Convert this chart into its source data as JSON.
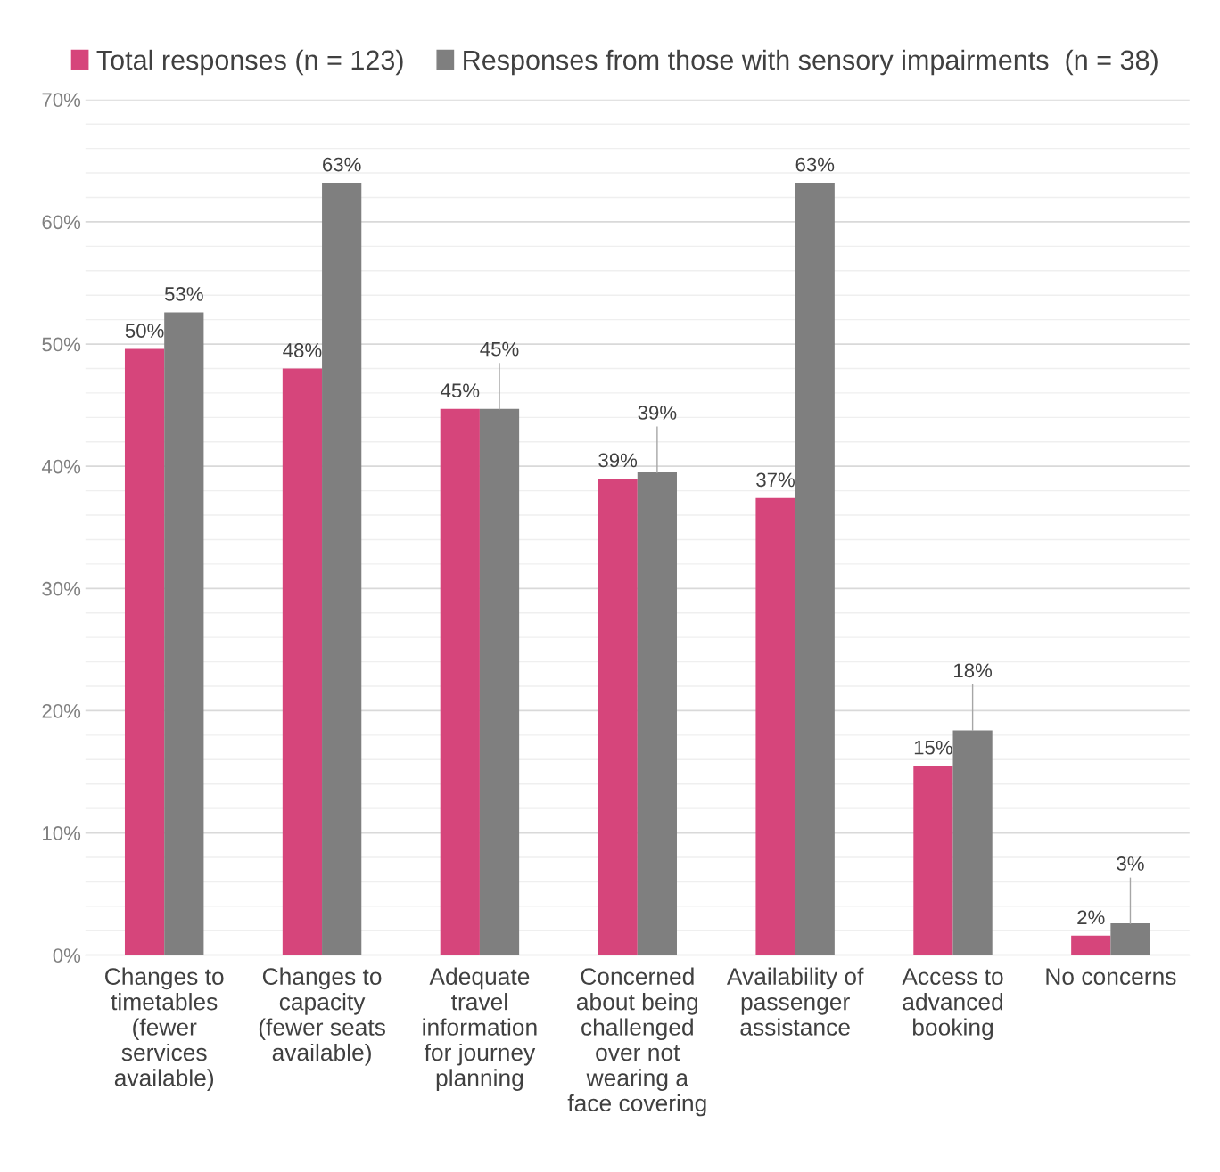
{
  "chart_data": {
    "type": "bar",
    "categories": [
      "Changes to\ntimetables\n(fewer\nservices\navailable)",
      "Changes to\ncapacity\n(fewer seats\navailable)",
      "Adequate\ntravel\ninformation\nfor journey\nplanning",
      "Concerned\nabout being\nchallenged\nover not\nwearing a\nface covering",
      "Availability of\npassenger\nassistance",
      "Access to\nadvanced\nbooking",
      "No concerns"
    ],
    "series": [
      {
        "name": "Total responses (n = 123)",
        "color": "#d6457b",
        "values": [
          49.6,
          48.0,
          44.7,
          39.0,
          37.4,
          15.5,
          1.6
        ],
        "value_labels": [
          "50%",
          "48%",
          "45%",
          "39%",
          "37%",
          "15%",
          "2%"
        ]
      },
      {
        "name": "Responses from those with sensory impairments  (n = 38)",
        "color": "#7f7f7f",
        "values": [
          52.6,
          63.2,
          44.7,
          39.5,
          63.2,
          18.4,
          2.6
        ],
        "value_labels": [
          "53%",
          "63%",
          "45%",
          "39%",
          "63%",
          "18%",
          "3%"
        ]
      }
    ],
    "ylim": [
      0,
      70
    ],
    "yticks": [
      {
        "value": 0,
        "label": "0%"
      },
      {
        "value": 2,
        "label": null
      },
      {
        "value": 4,
        "label": null
      },
      {
        "value": 6,
        "label": null
      },
      {
        "value": 8,
        "label": null
      },
      {
        "value": 10,
        "label": "10%"
      },
      {
        "value": 12,
        "label": null
      },
      {
        "value": 14,
        "label": null
      },
      {
        "value": 16,
        "label": null
      },
      {
        "value": 18,
        "label": null
      },
      {
        "value": 20,
        "label": "20%"
      },
      {
        "value": 22,
        "label": null
      },
      {
        "value": 24,
        "label": null
      },
      {
        "value": 26,
        "label": null
      },
      {
        "value": 28,
        "label": null
      },
      {
        "value": 30,
        "label": "30%"
      },
      {
        "value": 32,
        "label": null
      },
      {
        "value": 34,
        "label": null
      },
      {
        "value": 36,
        "label": null
      },
      {
        "value": 38,
        "label": null
      },
      {
        "value": 40,
        "label": "40%"
      },
      {
        "value": 42,
        "label": null
      },
      {
        "value": 44,
        "label": null
      },
      {
        "value": 46,
        "label": null
      },
      {
        "value": 48,
        "label": null
      },
      {
        "value": 50,
        "label": "50%"
      },
      {
        "value": 52,
        "label": null
      },
      {
        "value": 54,
        "label": null
      },
      {
        "value": 56,
        "label": null
      },
      {
        "value": 58,
        "label": null
      },
      {
        "value": 60,
        "label": "60%"
      },
      {
        "value": 62,
        "label": null
      },
      {
        "value": 64,
        "label": null
      },
      {
        "value": 66,
        "label": null
      },
      {
        "value": 68,
        "label": null
      },
      {
        "value": 70,
        "label": "70%"
      }
    ],
    "grid": "y",
    "legend": "top"
  }
}
